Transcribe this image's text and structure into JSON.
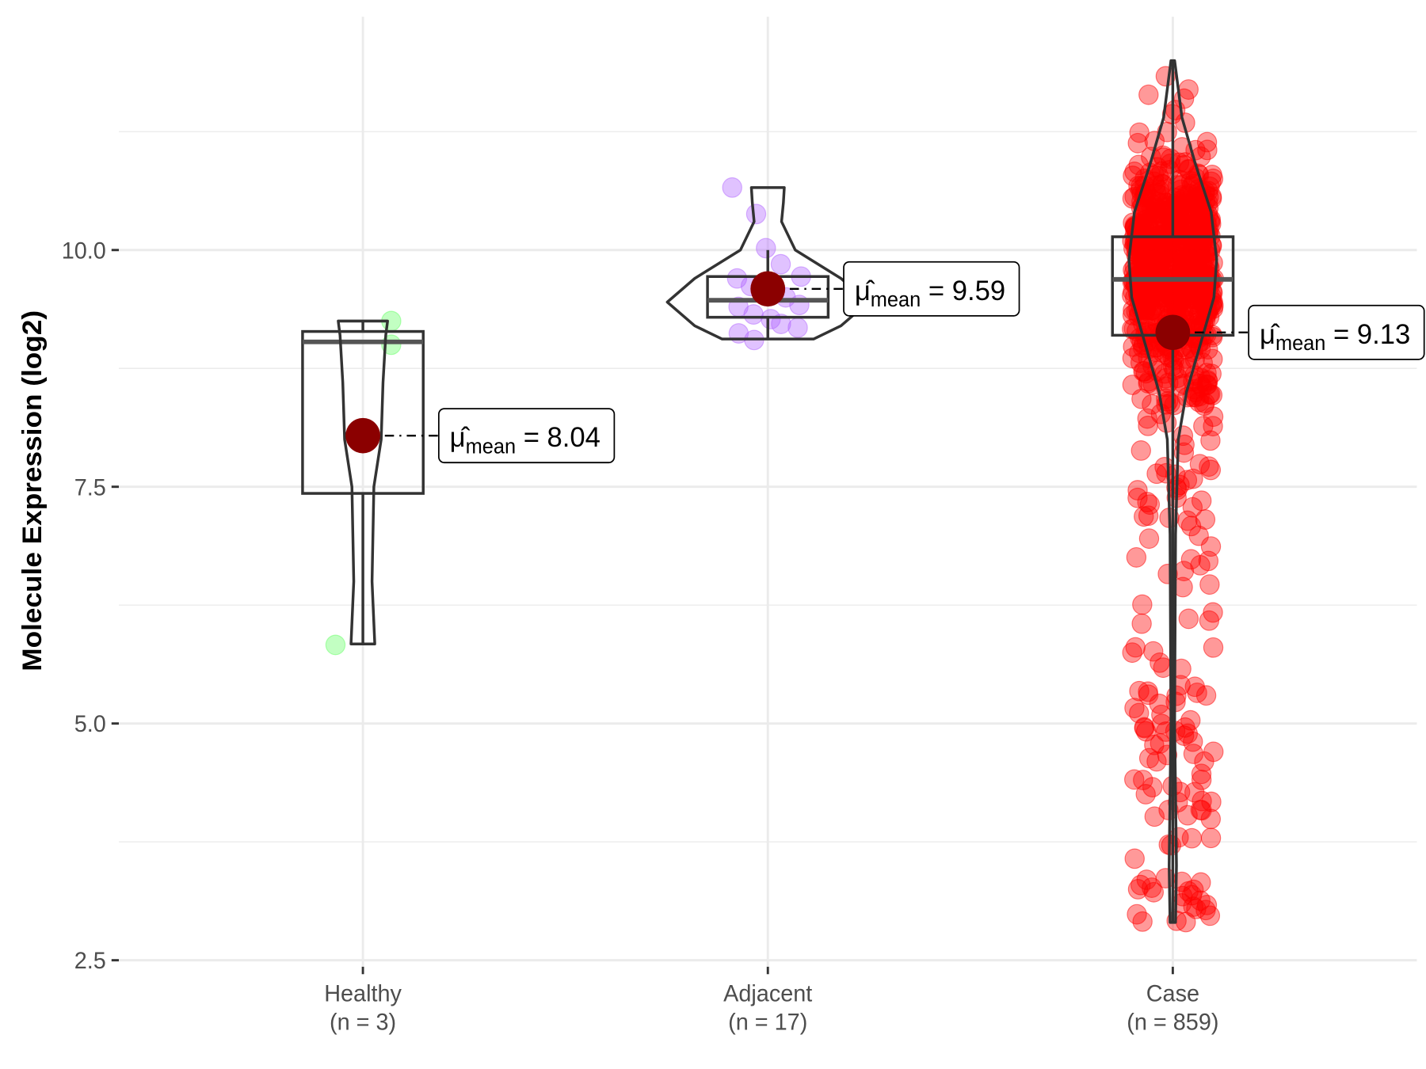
{
  "chart_data": {
    "type": "violin-box-scatter",
    "title": "",
    "xlabel": "",
    "ylabel": "Molecule Expression (log2)",
    "ylim": [
      2.4,
      12.6
    ],
    "yticks": [
      "2.5",
      "5.0",
      "7.5",
      "10.0"
    ],
    "ytick_values": [
      2.5,
      5.0,
      7.5,
      10.0
    ],
    "grid": true,
    "groups": [
      {
        "name": "Healthy",
        "n_label": "(n = 3)",
        "color": "#66ff66",
        "mean": 8.04,
        "mean_label": "8.04",
        "box": {
          "q1": 7.43,
          "median": 9.03,
          "q3": 9.14,
          "whisker_low": 5.84,
          "whisker_high": 9.25
        },
        "points": [
          9.25,
          9.0,
          5.83
        ],
        "violin": [
          [
            5.84,
            0.13
          ],
          [
            6.5,
            0.1
          ],
          [
            7.5,
            0.12
          ],
          [
            8.0,
            0.2
          ],
          [
            8.6,
            0.22
          ],
          [
            9.1,
            0.25
          ],
          [
            9.25,
            0.27
          ]
        ]
      },
      {
        "name": "Adjacent",
        "n_label": "(n = 17)",
        "color": "#b266ff",
        "mean": 9.59,
        "mean_label": "9.59",
        "box": {
          "q1": 9.29,
          "median": 9.47,
          "q3": 9.72,
          "whisker_low": 9.06,
          "whisker_high": 10.0
        },
        "points": [
          10.66,
          10.38,
          10.02,
          9.85,
          9.72,
          9.7,
          9.62,
          9.55,
          9.5,
          9.42,
          9.4,
          9.32,
          9.27,
          9.22,
          9.18,
          9.12,
          9.05
        ],
        "violin": [
          [
            9.06,
            0.5
          ],
          [
            9.2,
            0.8
          ],
          [
            9.45,
            1.1
          ],
          [
            9.7,
            0.8
          ],
          [
            10.0,
            0.3
          ],
          [
            10.3,
            0.15
          ],
          [
            10.5,
            0.17
          ],
          [
            10.66,
            0.18
          ]
        ]
      },
      {
        "name": "Case",
        "n_label": "(n = 859)",
        "color": "#ff0000",
        "mean": 9.13,
        "mean_label": "9.13",
        "box": {
          "q1": 9.1,
          "median": 9.69,
          "q3": 10.14,
          "whisker_low": 2.9,
          "whisker_high": 12.0
        },
        "n": 859,
        "violin": [
          [
            2.9,
            0.03
          ],
          [
            3.5,
            0.04
          ],
          [
            5.0,
            0.02
          ],
          [
            7.0,
            0.03
          ],
          [
            8.0,
            0.06
          ],
          [
            8.5,
            0.15
          ],
          [
            9.0,
            0.3
          ],
          [
            9.5,
            0.45
          ],
          [
            9.9,
            0.48
          ],
          [
            10.4,
            0.42
          ],
          [
            10.9,
            0.25
          ],
          [
            11.4,
            0.1
          ],
          [
            12.0,
            0.02
          ]
        ]
      }
    ],
    "mean_symbol": "μ̂",
    "mean_subscript": "mean",
    "mean_color": "#8b0000"
  }
}
